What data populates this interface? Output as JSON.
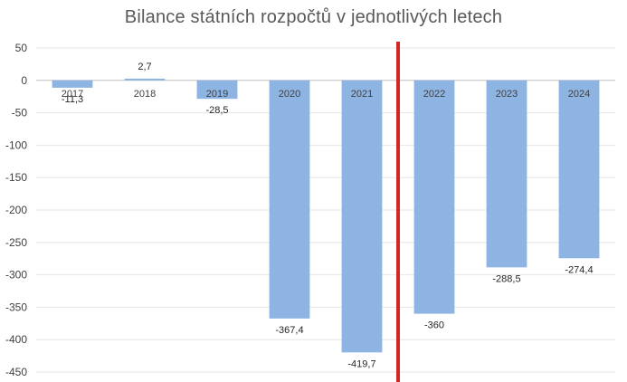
{
  "chart_data": {
    "type": "bar",
    "title": "Bilance státních rozpočtů v jednotlivých letech",
    "categories": [
      "2017",
      "2018",
      "2019",
      "2020",
      "2021",
      "2022",
      "2023",
      "2024"
    ],
    "values": [
      -11.3,
      2.7,
      -28.5,
      -367.4,
      -419.7,
      -360,
      -288.5,
      -274.4
    ],
    "data_labels": [
      "-11,3",
      "2,7",
      "-28,5",
      "-367,4",
      "-419,7",
      "-360",
      "-288,5",
      "-274,4"
    ],
    "yticks": [
      "50",
      "0",
      "-50",
      "-100",
      "-150",
      "-200",
      "-250",
      "-300",
      "-350",
      "-400",
      "-450"
    ],
    "ylim": [
      -450,
      50
    ],
    "grid": true,
    "legend": "none",
    "bar_color": "#8db4e2",
    "marker_line": {
      "between": [
        "2021",
        "2022"
      ],
      "color": "#d62728"
    }
  }
}
